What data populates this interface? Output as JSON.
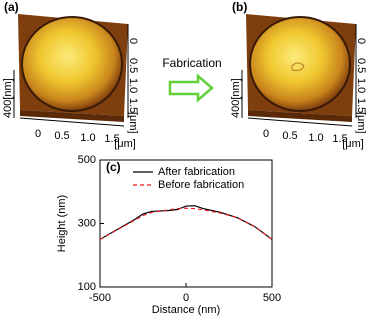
{
  "panels": {
    "a": "(a)",
    "b": "(b)"
  },
  "afm_axes": {
    "x_ticks": [
      "0",
      "0.5",
      "1.0",
      "1.5"
    ],
    "x_unit": "[μm]",
    "y_ticks": [
      "0",
      "0.5",
      "1.0",
      "1.5"
    ],
    "y_unit": "[μm]",
    "z_label": "400[nm]"
  },
  "arrow_label": "Fabrication",
  "chart_data": {
    "type": "line",
    "panel_label": "(c)",
    "xlabel": "Distance (nm)",
    "ylabel": "Height (nm)",
    "x": [
      -500,
      -400,
      -300,
      -250,
      -200,
      -100,
      -50,
      0,
      50,
      100,
      200,
      300,
      400,
      500
    ],
    "series": [
      {
        "name": "After fabrication",
        "color": "#000000",
        "dash": false,
        "values": [
          250,
          281,
          312,
          330,
          338,
          341,
          344,
          355,
          356,
          347,
          335,
          318,
          290,
          250
        ]
      },
      {
        "name": "Before fabrication",
        "color": "#e41a1c",
        "dash": true,
        "values": [
          250,
          280,
          310,
          325,
          335,
          343,
          347,
          348,
          347,
          343,
          333,
          318,
          290,
          250
        ]
      }
    ],
    "xlim": [
      -500,
      500
    ],
    "xticks": [
      -500,
      0,
      500
    ],
    "ylim": [
      100,
      500
    ],
    "yticks": [
      100,
      300,
      500
    ],
    "legend": "upper right"
  }
}
